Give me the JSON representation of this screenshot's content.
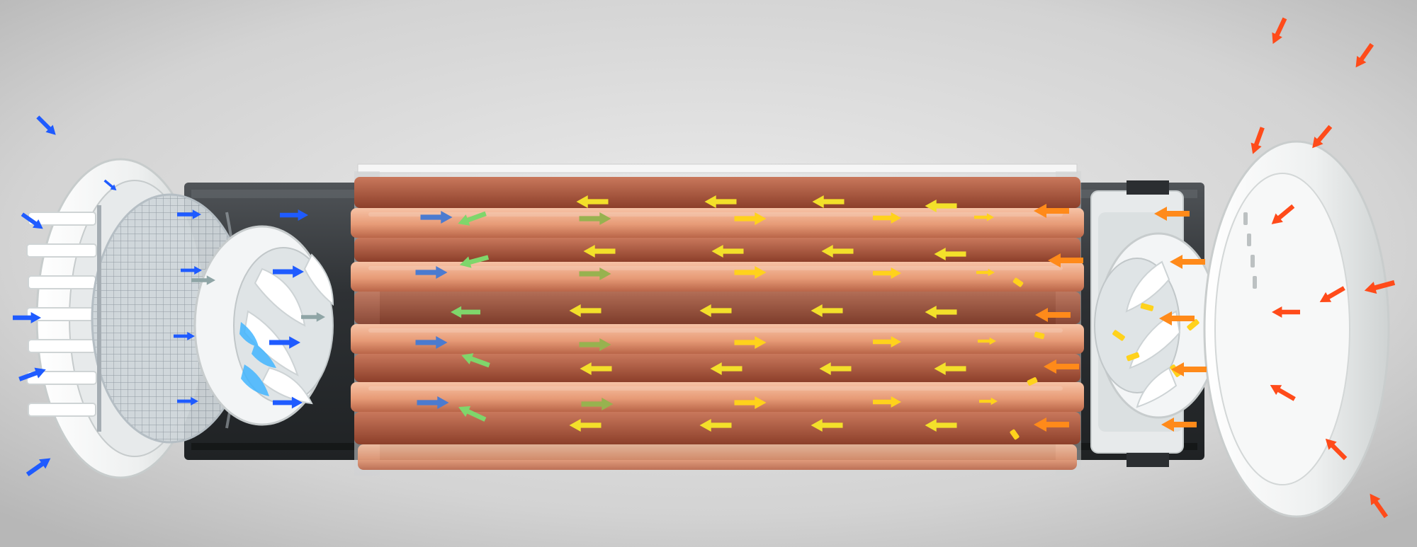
{
  "scene": {
    "subject": "heat-recovery-ventilator-exploded-view",
    "colors": {
      "background_light": "#e6e6e6",
      "background_dark": "#b9b9b9",
      "copper_light": "#f1b08e",
      "copper_dark": "#b66045",
      "housing_white": "#f2f4f4",
      "frame_dark": "#3a3d40",
      "fresh_air_blue": "#1f5bff",
      "exhaust_orange": "#ff6a1a",
      "warm_yellow": "#ffd21c",
      "transition_green": "#8fd36b"
    },
    "icons": {
      "incoming_air": "arrow-icon",
      "fan": "fan-impeller-icon",
      "filter": "mesh-filter-icon",
      "exchanger": "ceramic-heat-exchanger-icon"
    }
  }
}
